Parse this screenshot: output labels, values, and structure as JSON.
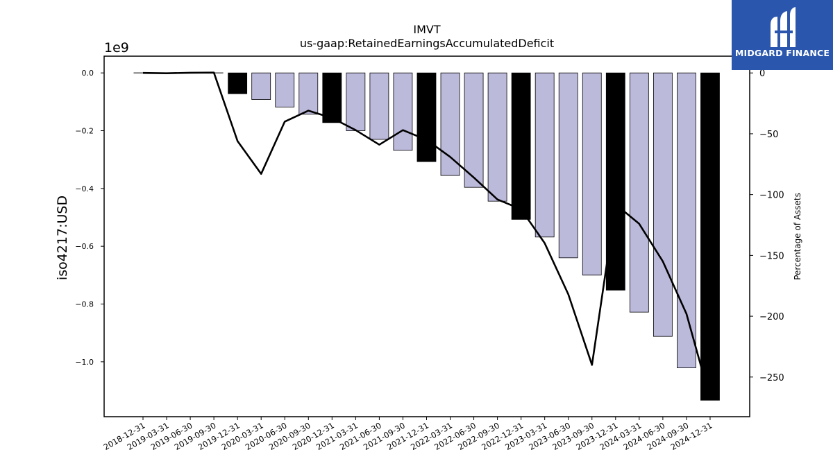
{
  "brand": {
    "name": "MIDGARD FINANCE",
    "color": "#2a57ad",
    "icon": "midgard-logo-icon"
  },
  "chart_data": {
    "type": "bar",
    "title": "IMVT",
    "subtitle": "us-gaap:RetainedEarningsAccumulatedDeficit",
    "ylabel": "iso4217:USD",
    "y_scale_label": "1e9",
    "y2label": "Percentage of Assets",
    "categories": [
      "2018-12-31",
      "2019-03-31",
      "2019-06-30",
      "2019-09-30",
      "2019-12-31",
      "2020-03-31",
      "2020-06-30",
      "2020-09-30",
      "2020-12-31",
      "2021-03-31",
      "2021-06-30",
      "2021-09-30",
      "2021-12-31",
      "2022-03-31",
      "2022-06-30",
      "2022-09-30",
      "2022-12-31",
      "2023-03-31",
      "2023-06-30",
      "2023-09-30",
      "2023-12-31",
      "2024-03-31",
      "2024-06-30",
      "2024-09-30",
      "2024-12-31"
    ],
    "series": [
      {
        "values": [
          0.0,
          0.0,
          0.0,
          0.0,
          -0.072,
          -0.092,
          -0.118,
          -0.143,
          -0.172,
          -0.2,
          -0.23,
          -0.268,
          -0.307,
          -0.355,
          -0.396,
          -0.444,
          -0.507,
          -0.568,
          -0.64,
          -0.7,
          -0.752,
          -0.828,
          -0.912,
          -1.021,
          -1.133
        ],
        "units": "1e9 USD",
        "fiscal_year_end_color": "#000000",
        "quarter_color": "#bcbadb"
      },
      {
        "values": [
          0.0,
          -0.3,
          0.2,
          0.3,
          -56,
          -83,
          -40,
          -31,
          -37,
          -47,
          -59,
          -47,
          -55,
          -69,
          -86,
          -104,
          -112,
          -140,
          -182,
          -240,
          -108,
          -124,
          -155,
          -198,
          -268
        ],
        "units": "percent",
        "axis": "right",
        "color": "#000000"
      }
    ],
    "bar_colors": [
      "#000000",
      "#bcbadb",
      "#bcbadb",
      "#bcbadb",
      "#000000",
      "#bcbadb",
      "#bcbadb",
      "#bcbadb",
      "#000000",
      "#bcbadb",
      "#bcbadb",
      "#bcbadb",
      "#000000",
      "#bcbadb",
      "#bcbadb",
      "#bcbadb",
      "#000000",
      "#bcbadb",
      "#bcbadb",
      "#bcbadb",
      "#000000",
      "#bcbadb",
      "#bcbadb",
      "#bcbadb",
      "#000000"
    ],
    "y_ticks": [
      0.0,
      -0.2,
      -0.4,
      -0.6,
      -0.8,
      -1.0
    ],
    "y_tick_labels": [
      "0.0",
      "−0.2",
      "−0.4",
      "−0.6",
      "−0.8",
      "−1.0"
    ],
    "y2_ticks": [
      0,
      -50,
      -100,
      -150,
      -200,
      -250
    ],
    "y2_tick_labels": [
      "0",
      "−50",
      "−100",
      "−150",
      "−200",
      "−250"
    ],
    "ylim": [
      -1.19,
      0.058
    ],
    "y2lim": [
      -282.6,
      13.8
    ],
    "grid": false,
    "legend": "none"
  }
}
